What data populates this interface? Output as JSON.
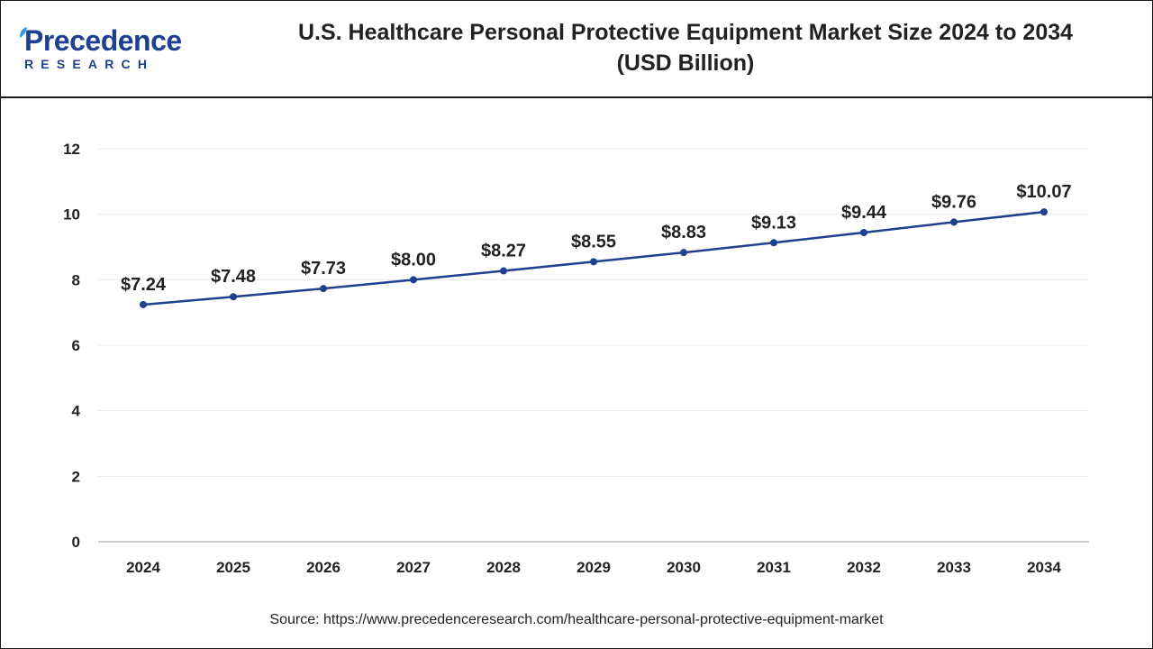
{
  "header": {
    "logo_word": "Precedence",
    "logo_sub": "RESEARCH",
    "title_line1": "U.S. Healthcare Personal Protective Equipment Market Size 2024 to 2034",
    "title_line2": "(USD Billion)"
  },
  "chart_data": {
    "type": "line",
    "title": "U.S. Healthcare Personal Protective Equipment Market Size 2024 to 2034 (USD Billion)",
    "xlabel": "",
    "ylabel": "",
    "categories": [
      "2024",
      "2025",
      "2026",
      "2027",
      "2028",
      "2029",
      "2030",
      "2031",
      "2032",
      "2033",
      "2034"
    ],
    "series": [
      {
        "values": [
          7.24,
          7.48,
          7.73,
          8.0,
          8.27,
          8.55,
          8.83,
          9.13,
          9.44,
          9.76,
          10.07
        ],
        "labels": [
          "$7.24",
          "$7.48",
          "$7.73",
          "$8.00",
          "$8.27",
          "$8.55",
          "$8.83",
          "$9.13",
          "$9.44",
          "$9.76",
          "$10.07"
        ]
      }
    ],
    "ylim": [
      0,
      12
    ],
    "yticks": [
      "0",
      "2",
      "4",
      "6",
      "8",
      "10",
      "12"
    ],
    "grid": true,
    "legend": "none",
    "line_color": "#1f3f8f"
  },
  "source_text": "Source: https://www.precedenceresearch.com/healthcare-personal-protective-equipment-market",
  "colors": {
    "brand": "#1f3f8f",
    "text": "#222222",
    "grid": "#ececec",
    "axis": "#bdbdbd"
  }
}
